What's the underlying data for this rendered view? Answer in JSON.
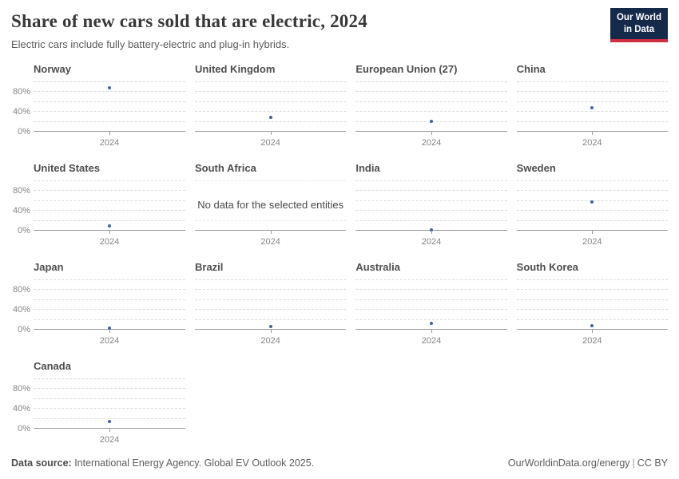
{
  "header": {
    "title": "Share of new cars sold that are electric, 2024",
    "subtitle": "Electric cars include fully battery-electric and plug-in hybrids.",
    "logo": {
      "line1": "Our World",
      "line2": "in Data"
    }
  },
  "chart_data": {
    "type": "scatter",
    "title": "Share of new cars sold that are electric, 2024",
    "x_tick_label": "2024",
    "y_axis": {
      "unit": "%",
      "ylim": [
        0,
        100
      ],
      "gridline_values": [
        20,
        40,
        60,
        80,
        100
      ],
      "labeled_ticks": [
        {
          "value": 0,
          "label": "0%"
        },
        {
          "value": 40,
          "label": "40%"
        },
        {
          "value": 80,
          "label": "80%"
        }
      ]
    },
    "layout": {
      "columns": 4,
      "grid": "dashed",
      "y_labels_first_column_only": true
    },
    "facets": [
      {
        "label": "Norway",
        "value": 89
      },
      {
        "label": "United Kingdom",
        "value": 29
      },
      {
        "label": "European Union (27)",
        "value": 21
      },
      {
        "label": "China",
        "value": 48
      },
      {
        "label": "United States",
        "value": 10
      },
      {
        "label": "South Africa",
        "value": null,
        "note": "No data for the selected entities"
      },
      {
        "label": "India",
        "value": 2
      },
      {
        "label": "Sweden",
        "value": 58
      },
      {
        "label": "Japan",
        "value": 3
      },
      {
        "label": "Brazil",
        "value": 6.5
      },
      {
        "label": "Australia",
        "value": 13
      },
      {
        "label": "South Korea",
        "value": 8
      },
      {
        "label": "Canada",
        "value": 15
      }
    ]
  },
  "colors": {
    "dot": "#3e669c",
    "gridline": "#d7dce2",
    "axis": "#9c9c9c",
    "logo_bg": "#15294b",
    "logo_accent": "#cf2e41"
  },
  "footer": {
    "datasource_label": "Data source:",
    "datasource_text": " International Energy Agency. Global EV Outlook 2025.",
    "link": "OurWorldinData.org/energy",
    "divider": "|",
    "license": "CC BY"
  }
}
